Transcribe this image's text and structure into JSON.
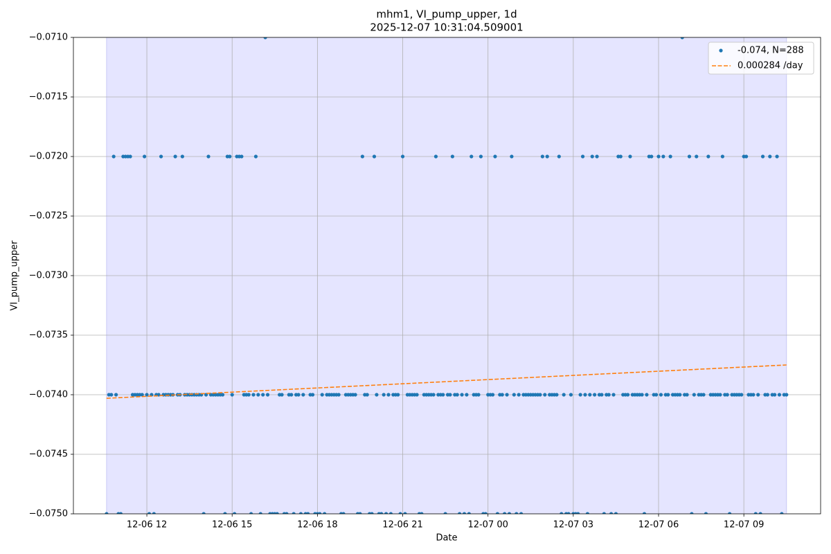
{
  "chart_data": {
    "type": "scatter",
    "title": "mhm1, VI_pump_upper, 1d",
    "subtitle": "2025-12-07 10:31:04.509001",
    "xlabel": "Date",
    "ylabel": "VI_pump_upper",
    "grid": true,
    "legend": "upper right",
    "span_color": "#e5e5ff",
    "xlim": [
      "2025-12-06T09:25",
      "2025-12-07T11:42"
    ],
    "xticks": [
      {
        "value": "2025-12-06T12:00",
        "label": "12-06 12"
      },
      {
        "value": "2025-12-06T15:00",
        "label": "12-06 15"
      },
      {
        "value": "2025-12-06T18:00",
        "label": "12-06 18"
      },
      {
        "value": "2025-12-06T21:00",
        "label": "12-06 21"
      },
      {
        "value": "2025-12-07T00:00",
        "label": "12-07 00"
      },
      {
        "value": "2025-12-07T03:00",
        "label": "12-07 03"
      },
      {
        "value": "2025-12-07T06:00",
        "label": "12-07 06"
      },
      {
        "value": "2025-12-07T09:00",
        "label": "12-07 09"
      }
    ],
    "ylim": [
      -0.075,
      -0.071
    ],
    "yticks": [
      {
        "value": -0.075,
        "label": "−0.0750"
      },
      {
        "value": -0.0745,
        "label": "−0.0745"
      },
      {
        "value": -0.074,
        "label": "−0.0740"
      },
      {
        "value": -0.0735,
        "label": "−0.0735"
      },
      {
        "value": -0.073,
        "label": "−0.0730"
      },
      {
        "value": -0.0725,
        "label": "−0.0725"
      },
      {
        "value": -0.072,
        "label": "−0.0720"
      },
      {
        "value": -0.0715,
        "label": "−0.0715"
      },
      {
        "value": -0.071,
        "label": "−0.0710"
      }
    ],
    "series": [
      {
        "name": "-0.074, N=288",
        "type": "scatter",
        "color": "#1f77b4",
        "x": [
          "2025-12-06T10:35",
          "2025-12-06T10:40",
          "2025-12-06T10:45",
          "2025-12-06T10:50",
          "2025-12-06T10:55",
          "2025-12-06T11:00",
          "2025-12-06T11:05",
          "2025-12-06T11:10",
          "2025-12-06T11:15",
          "2025-12-06T11:20",
          "2025-12-06T11:25",
          "2025-12-06T11:30",
          "2025-12-06T11:35",
          "2025-12-06T11:40",
          "2025-12-06T11:45",
          "2025-12-06T11:50",
          "2025-12-06T11:55",
          "2025-12-06T12:00",
          "2025-12-06T12:05",
          "2025-12-06T12:10",
          "2025-12-06T12:15",
          "2025-12-06T12:20",
          "2025-12-06T12:25",
          "2025-12-06T12:30",
          "2025-12-06T12:35",
          "2025-12-06T12:40",
          "2025-12-06T12:45",
          "2025-12-06T12:50",
          "2025-12-06T12:55",
          "2025-12-06T13:00",
          "2025-12-06T13:05",
          "2025-12-06T13:10",
          "2025-12-06T13:15",
          "2025-12-06T13:20",
          "2025-12-06T13:25",
          "2025-12-06T13:30",
          "2025-12-06T13:35",
          "2025-12-06T13:40",
          "2025-12-06T13:45",
          "2025-12-06T13:50",
          "2025-12-06T13:55",
          "2025-12-06T14:00",
          "2025-12-06T14:05",
          "2025-12-06T14:10",
          "2025-12-06T14:15",
          "2025-12-06T14:20",
          "2025-12-06T14:25",
          "2025-12-06T14:30",
          "2025-12-06T14:35",
          "2025-12-06T14:40",
          "2025-12-06T14:45",
          "2025-12-06T14:50",
          "2025-12-06T14:55",
          "2025-12-06T15:00",
          "2025-12-06T15:05",
          "2025-12-06T15:10",
          "2025-12-06T15:15",
          "2025-12-06T15:20",
          "2025-12-06T15:25",
          "2025-12-06T15:30",
          "2025-12-06T15:35",
          "2025-12-06T15:40",
          "2025-12-06T15:45",
          "2025-12-06T15:50",
          "2025-12-06T15:55",
          "2025-12-06T16:00",
          "2025-12-06T16:05",
          "2025-12-06T16:10",
          "2025-12-06T16:15",
          "2025-12-06T16:20",
          "2025-12-06T16:25",
          "2025-12-06T16:30",
          "2025-12-06T16:35",
          "2025-12-06T16:40",
          "2025-12-06T16:45",
          "2025-12-06T16:50",
          "2025-12-06T16:55",
          "2025-12-06T17:00",
          "2025-12-06T17:05",
          "2025-12-06T17:10",
          "2025-12-06T17:15",
          "2025-12-06T17:20",
          "2025-12-06T17:25",
          "2025-12-06T17:30",
          "2025-12-06T17:35",
          "2025-12-06T17:40",
          "2025-12-06T17:45",
          "2025-12-06T17:50",
          "2025-12-06T17:55",
          "2025-12-06T18:00",
          "2025-12-06T18:05",
          "2025-12-06T18:10",
          "2025-12-06T18:15",
          "2025-12-06T18:20",
          "2025-12-06T18:25",
          "2025-12-06T18:30",
          "2025-12-06T18:35",
          "2025-12-06T18:40",
          "2025-12-06T18:45",
          "2025-12-06T18:50",
          "2025-12-06T18:55",
          "2025-12-06T19:00",
          "2025-12-06T19:05",
          "2025-12-06T19:10",
          "2025-12-06T19:15",
          "2025-12-06T19:20",
          "2025-12-06T19:25",
          "2025-12-06T19:30",
          "2025-12-06T19:35",
          "2025-12-06T19:40",
          "2025-12-06T19:45",
          "2025-12-06T19:50",
          "2025-12-06T19:55",
          "2025-12-06T20:00",
          "2025-12-06T20:05",
          "2025-12-06T20:10",
          "2025-12-06T20:15",
          "2025-12-06T20:20",
          "2025-12-06T20:25",
          "2025-12-06T20:30",
          "2025-12-06T20:35",
          "2025-12-06T20:40",
          "2025-12-06T20:45",
          "2025-12-06T20:50",
          "2025-12-06T20:55",
          "2025-12-06T21:00",
          "2025-12-06T21:05",
          "2025-12-06T21:10",
          "2025-12-06T21:15",
          "2025-12-06T21:20",
          "2025-12-06T21:25",
          "2025-12-06T21:30",
          "2025-12-06T21:35",
          "2025-12-06T21:40",
          "2025-12-06T21:45",
          "2025-12-06T21:50",
          "2025-12-06T21:55",
          "2025-12-06T22:00",
          "2025-12-06T22:05",
          "2025-12-06T22:10",
          "2025-12-06T22:15",
          "2025-12-06T22:20",
          "2025-12-06T22:25",
          "2025-12-06T22:30",
          "2025-12-06T22:35",
          "2025-12-06T22:40",
          "2025-12-06T22:45",
          "2025-12-06T22:50",
          "2025-12-06T22:55",
          "2025-12-06T23:00",
          "2025-12-06T23:05",
          "2025-12-06T23:10",
          "2025-12-06T23:15",
          "2025-12-06T23:20",
          "2025-12-06T23:25",
          "2025-12-06T23:30",
          "2025-12-06T23:35",
          "2025-12-06T23:40",
          "2025-12-06T23:45",
          "2025-12-06T23:50",
          "2025-12-06T23:55",
          "2025-12-07T00:00",
          "2025-12-07T00:05",
          "2025-12-07T00:10",
          "2025-12-07T00:15",
          "2025-12-07T00:20",
          "2025-12-07T00:25",
          "2025-12-07T00:30",
          "2025-12-07T00:35",
          "2025-12-07T00:40",
          "2025-12-07T00:45",
          "2025-12-07T00:50",
          "2025-12-07T00:55",
          "2025-12-07T01:00",
          "2025-12-07T01:05",
          "2025-12-07T01:10",
          "2025-12-07T01:15",
          "2025-12-07T01:20",
          "2025-12-07T01:25",
          "2025-12-07T01:30",
          "2025-12-07T01:35",
          "2025-12-07T01:40",
          "2025-12-07T01:45",
          "2025-12-07T01:50",
          "2025-12-07T01:55",
          "2025-12-07T02:00",
          "2025-12-07T02:05",
          "2025-12-07T02:10",
          "2025-12-07T02:15",
          "2025-12-07T02:20",
          "2025-12-07T02:25",
          "2025-12-07T02:30",
          "2025-12-07T02:35",
          "2025-12-07T02:40",
          "2025-12-07T02:45",
          "2025-12-07T02:50",
          "2025-12-07T02:55",
          "2025-12-07T03:00",
          "2025-12-07T03:05",
          "2025-12-07T03:10",
          "2025-12-07T03:15",
          "2025-12-07T03:20",
          "2025-12-07T03:25",
          "2025-12-07T03:30",
          "2025-12-07T03:35",
          "2025-12-07T03:40",
          "2025-12-07T03:45",
          "2025-12-07T03:50",
          "2025-12-07T03:55",
          "2025-12-07T04:00",
          "2025-12-07T04:05",
          "2025-12-07T04:10",
          "2025-12-07T04:15",
          "2025-12-07T04:20",
          "2025-12-07T04:25",
          "2025-12-07T04:30",
          "2025-12-07T04:35",
          "2025-12-07T04:40",
          "2025-12-07T04:45",
          "2025-12-07T04:50",
          "2025-12-07T04:55",
          "2025-12-07T05:00",
          "2025-12-07T05:05",
          "2025-12-07T05:10",
          "2025-12-07T05:15",
          "2025-12-07T05:20",
          "2025-12-07T05:25",
          "2025-12-07T05:30",
          "2025-12-07T05:35",
          "2025-12-07T05:40",
          "2025-12-07T05:45",
          "2025-12-07T05:50",
          "2025-12-07T05:55",
          "2025-12-07T06:00",
          "2025-12-07T06:05",
          "2025-12-07T06:10",
          "2025-12-07T06:15",
          "2025-12-07T06:20",
          "2025-12-07T06:25",
          "2025-12-07T06:30",
          "2025-12-07T06:35",
          "2025-12-07T06:40",
          "2025-12-07T06:45",
          "2025-12-07T06:50",
          "2025-12-07T06:55",
          "2025-12-07T07:00",
          "2025-12-07T07:05",
          "2025-12-07T07:10",
          "2025-12-07T07:15",
          "2025-12-07T07:20",
          "2025-12-07T07:25",
          "2025-12-07T07:30",
          "2025-12-07T07:35",
          "2025-12-07T07:40",
          "2025-12-07T07:45",
          "2025-12-07T07:50",
          "2025-12-07T07:55",
          "2025-12-07T08:00",
          "2025-12-07T08:05",
          "2025-12-07T08:10",
          "2025-12-07T08:15",
          "2025-12-07T08:20",
          "2025-12-07T08:25",
          "2025-12-07T08:30",
          "2025-12-07T08:35",
          "2025-12-07T08:40",
          "2025-12-07T08:45",
          "2025-12-07T08:50",
          "2025-12-07T08:55",
          "2025-12-07T09:00",
          "2025-12-07T09:05",
          "2025-12-07T09:10",
          "2025-12-07T09:15",
          "2025-12-07T09:20",
          "2025-12-07T09:25",
          "2025-12-07T09:30",
          "2025-12-07T09:35",
          "2025-12-07T09:40",
          "2025-12-07T09:45",
          "2025-12-07T09:50",
          "2025-12-07T09:55",
          "2025-12-07T10:00",
          "2025-12-07T10:05",
          "2025-12-07T10:10",
          "2025-12-07T10:15",
          "2025-12-07T10:20",
          "2025-12-07T10:25",
          "2025-12-07T10:30"
        ],
        "values": [
          -0.075,
          -0.074,
          -0.074,
          -0.072,
          -0.074,
          -0.075,
          -0.075,
          -0.072,
          -0.072,
          -0.072,
          -0.072,
          -0.074,
          -0.074,
          -0.074,
          -0.074,
          -0.074,
          -0.072,
          -0.074,
          -0.075,
          -0.074,
          -0.075,
          -0.074,
          -0.074,
          -0.072,
          -0.074,
          -0.074,
          -0.074,
          -0.074,
          -0.074,
          -0.072,
          -0.074,
          -0.074,
          -0.072,
          -0.074,
          -0.074,
          -0.074,
          -0.074,
          -0.074,
          -0.074,
          -0.074,
          -0.074,
          -0.075,
          -0.074,
          -0.072,
          -0.074,
          -0.074,
          -0.074,
          -0.074,
          -0.074,
          -0.074,
          -0.075,
          -0.072,
          -0.072,
          -0.074,
          -0.075,
          -0.072,
          -0.072,
          -0.072,
          -0.074,
          -0.074,
          -0.074,
          -0.075,
          -0.074,
          -0.072,
          -0.074,
          -0.075,
          -0.074,
          -0.071,
          -0.074,
          -0.075,
          -0.075,
          -0.075,
          -0.075,
          -0.074,
          -0.074,
          -0.075,
          -0.075,
          -0.074,
          -0.074,
          -0.075,
          -0.074,
          -0.074,
          -0.075,
          -0.074,
          -0.075,
          -0.075,
          -0.074,
          -0.074,
          -0.075,
          -0.075,
          -0.075,
          -0.074,
          -0.075,
          -0.074,
          -0.074,
          -0.074,
          -0.074,
          -0.074,
          -0.074,
          -0.075,
          -0.075,
          -0.074,
          -0.074,
          -0.074,
          -0.074,
          -0.074,
          -0.075,
          -0.075,
          -0.072,
          -0.074,
          -0.074,
          -0.075,
          -0.075,
          -0.072,
          -0.074,
          -0.075,
          -0.075,
          -0.074,
          -0.075,
          -0.074,
          -0.075,
          -0.074,
          -0.074,
          -0.074,
          -0.075,
          -0.072,
          -0.075,
          -0.074,
          -0.074,
          -0.074,
          -0.074,
          -0.074,
          -0.075,
          -0.075,
          -0.074,
          -0.074,
          -0.074,
          -0.074,
          -0.074,
          -0.072,
          -0.074,
          -0.074,
          -0.074,
          -0.075,
          -0.074,
          -0.074,
          -0.072,
          -0.074,
          -0.074,
          -0.075,
          -0.074,
          -0.075,
          -0.074,
          -0.075,
          -0.072,
          -0.074,
          -0.074,
          -0.074,
          -0.072,
          -0.075,
          -0.075,
          -0.074,
          -0.074,
          -0.074,
          -0.072,
          -0.075,
          -0.074,
          -0.074,
          -0.075,
          -0.074,
          -0.075,
          -0.072,
          -0.074,
          -0.075,
          -0.074,
          -0.075,
          -0.074,
          -0.074,
          -0.074,
          -0.074,
          -0.074,
          -0.074,
          -0.074,
          -0.074,
          -0.072,
          -0.074,
          -0.072,
          -0.074,
          -0.074,
          -0.074,
          -0.074,
          -0.072,
          -0.075,
          -0.074,
          -0.075,
          -0.075,
          -0.074,
          -0.075,
          -0.075,
          -0.075,
          -0.074,
          -0.072,
          -0.074,
          -0.075,
          -0.074,
          -0.072,
          -0.074,
          -0.072,
          -0.074,
          -0.074,
          -0.075,
          -0.074,
          -0.074,
          -0.075,
          -0.074,
          -0.075,
          -0.072,
          -0.072,
          -0.074,
          -0.074,
          -0.074,
          -0.072,
          -0.074,
          -0.074,
          -0.074,
          -0.074,
          -0.074,
          -0.075,
          -0.074,
          -0.072,
          -0.072,
          -0.074,
          -0.074,
          -0.072,
          -0.074,
          -0.072,
          -0.074,
          -0.074,
          -0.072,
          -0.074,
          -0.074,
          -0.074,
          -0.074,
          -0.071,
          -0.074,
          -0.074,
          -0.072,
          -0.075,
          -0.074,
          -0.072,
          -0.074,
          -0.074,
          -0.074,
          -0.075,
          -0.072,
          -0.074,
          -0.074,
          -0.074,
          -0.074,
          -0.074,
          -0.072,
          -0.074,
          -0.074,
          -0.075,
          -0.074,
          -0.074,
          -0.074,
          -0.074,
          -0.074,
          -0.072,
          -0.072,
          -0.074,
          -0.074,
          -0.074,
          -0.075,
          -0.074,
          -0.075,
          -0.072,
          -0.074,
          -0.074,
          -0.072,
          -0.074,
          -0.074,
          -0.072,
          -0.074,
          -0.075,
          -0.074,
          -0.074
        ]
      },
      {
        "name": "0.000284 /day",
        "type": "line",
        "color": "#ff7f0e",
        "x": [
          "2025-12-06T10:35",
          "2025-12-07T10:30"
        ],
        "values": [
          -0.07403,
          -0.07375
        ]
      }
    ]
  }
}
